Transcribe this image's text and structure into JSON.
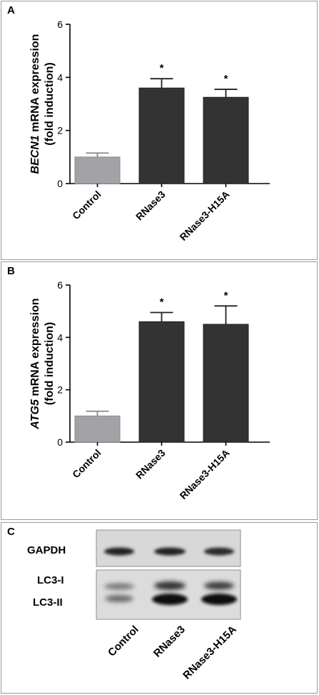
{
  "chart_data": [
    {
      "panel": "A",
      "type": "bar",
      "categories": [
        "Control",
        "RNase3",
        "RNase3-H15A"
      ],
      "values": [
        1.0,
        3.6,
        3.25
      ],
      "errors": [
        0.15,
        0.35,
        0.3
      ],
      "significance": [
        "",
        "*",
        "*"
      ],
      "bar_colors": [
        "#a3a3a7",
        "#333333",
        "#333333"
      ],
      "ylabel_italic": "BECN1",
      "ylabel_rest": " mRNA expression",
      "ylabel_line2": "(fold induction)",
      "ylim": [
        0,
        6
      ],
      "yticks": [
        0,
        2,
        4,
        6
      ]
    },
    {
      "panel": "B",
      "type": "bar",
      "categories": [
        "Control",
        "RNase3",
        "RNase3-H15A"
      ],
      "values": [
        1.0,
        4.6,
        4.5
      ],
      "errors": [
        0.18,
        0.35,
        0.7
      ],
      "significance": [
        "",
        "*",
        "*"
      ],
      "bar_colors": [
        "#a3a3a7",
        "#333333",
        "#333333"
      ],
      "ylabel_italic": "ATG5",
      "ylabel_rest": " mRNA expression",
      "ylabel_line2": "(fold induction)",
      "ylim": [
        0,
        6
      ],
      "yticks": [
        0,
        2,
        4,
        6
      ]
    }
  ],
  "panels": {
    "a": "A",
    "b": "B",
    "c": "C"
  },
  "blot": {
    "gapdh_label": "GAPDH",
    "lc3i_label": "LC3-I",
    "lc3ii_label": "LC3-II",
    "categories": [
      "Control",
      "RNase3",
      "RNase3-H15A"
    ]
  }
}
